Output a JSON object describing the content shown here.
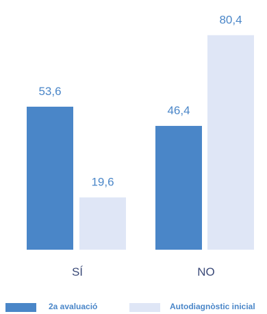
{
  "chart_data": {
    "type": "bar",
    "categories": [
      "SÍ",
      "NO"
    ],
    "series": [
      {
        "name": "2a avaluació",
        "values": [
          53.6,
          46.4
        ],
        "labels": [
          "53,6",
          "46,4"
        ],
        "color": "#4a86c8"
      },
      {
        "name": "Autodiagnòstic inicial",
        "values": [
          19.6,
          80.4
        ],
        "labels": [
          "19,6",
          "80,4"
        ],
        "color": "#dfe6f6"
      }
    ],
    "ylim": [
      0,
      100
    ],
    "grid": false,
    "legend_position": "bottom",
    "label_color": "#4a86c8",
    "category_label_color": "#3b4a78"
  }
}
